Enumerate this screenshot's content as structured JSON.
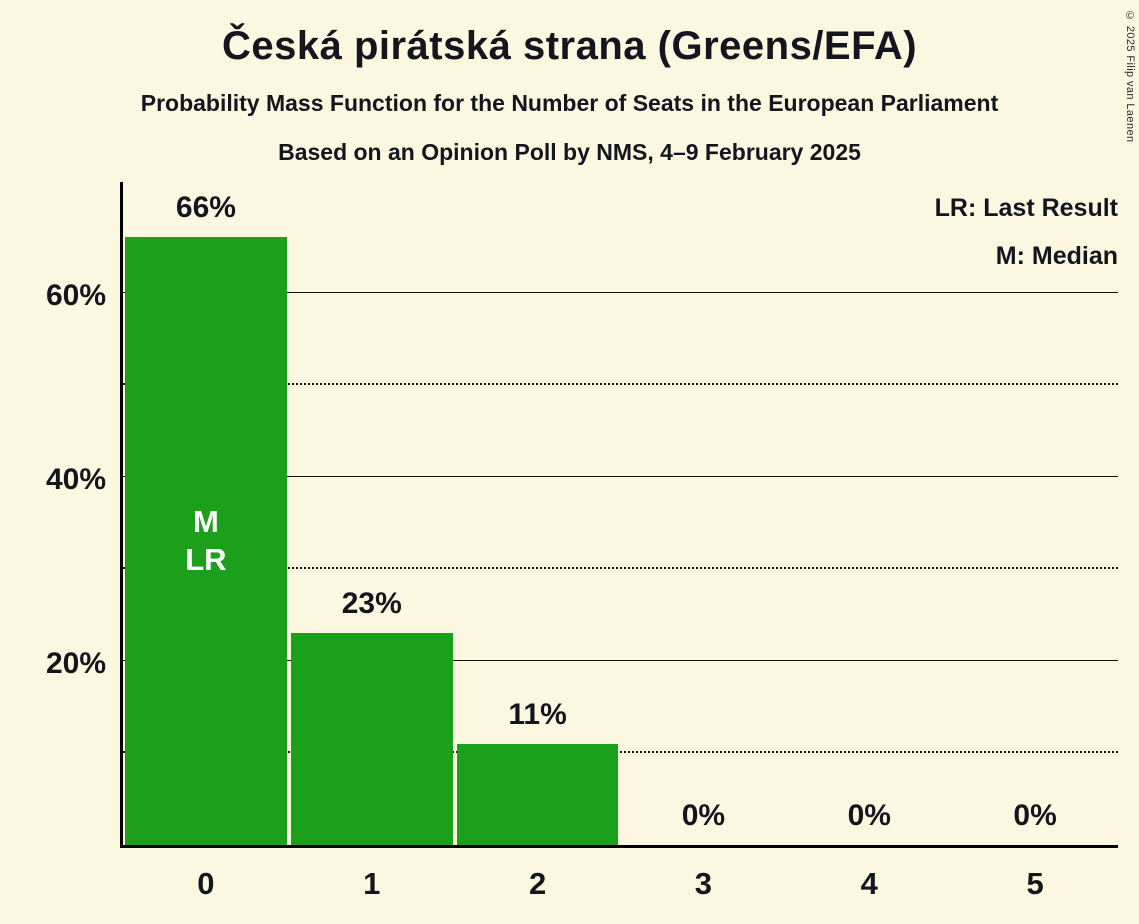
{
  "chart_data": {
    "type": "bar",
    "title": "Česká pirátská strana (Greens/EFA)",
    "subtitle": "Probability Mass Function for the Number of Seats in the European Parliament",
    "subtitle2": "Based on an Opinion Poll by NMS, 4–9 February 2025",
    "xlabel": "",
    "ylabel": "",
    "categories": [
      "0",
      "1",
      "2",
      "3",
      "4",
      "5"
    ],
    "values": [
      66,
      23,
      11,
      0,
      0,
      0
    ],
    "value_labels": [
      "66%",
      "23%",
      "11%",
      "0%",
      "0%",
      "0%"
    ],
    "ylim": [
      0,
      72
    ],
    "yticks": [
      {
        "value": 20,
        "label": "20%"
      },
      {
        "value": 40,
        "label": "40%"
      },
      {
        "value": 60,
        "label": "60%"
      }
    ],
    "gridlines": {
      "solid": [
        20,
        40,
        60
      ],
      "dotted": [
        10,
        30,
        50
      ]
    },
    "legend": [
      "LR: Last Result",
      "M: Median"
    ],
    "legend_position": "top-right",
    "annotations": [
      {
        "category": "0",
        "lines": [
          "M",
          "LR"
        ]
      }
    ],
    "colors": {
      "bar": "#1CA01C",
      "background": "#FCF7E1",
      "text": "#15151E",
      "annotation_text": "#FFFFFF"
    },
    "copyright": "© 2025 Filip van Laenen"
  }
}
